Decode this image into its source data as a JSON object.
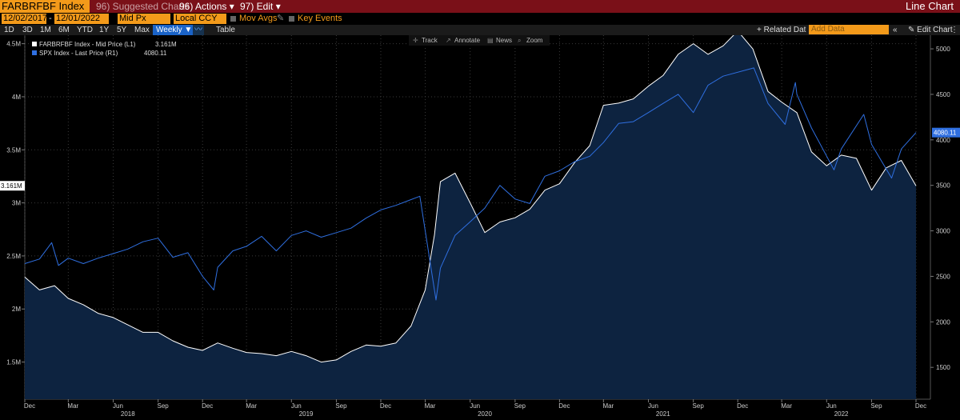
{
  "titlebar": {
    "ticker": "FARBRFBF Index",
    "menu_suggested": "96) Suggested Charts",
    "menu_actions": "96) Actions ▾",
    "menu_edit": "97) Edit ▾",
    "chart_type": "Line Chart"
  },
  "toolbar": {
    "start_date": "12/02/2017",
    "dash": "-",
    "end_date": "12/01/2022",
    "price_field": "Mid Px",
    "currency": "Local CCY",
    "mov_avgs": "Mov Avgs",
    "key_events": "Key Events"
  },
  "ranges": {
    "items": [
      "1D",
      "3D",
      "1M",
      "6M",
      "YTD",
      "1Y",
      "5Y",
      "Max"
    ],
    "periodicity": "Weekly ▼",
    "table": "Table",
    "related_data": "+ Related Dat",
    "add_data_placeholder": "Add Data",
    "edit_chart": "Edit Chart"
  },
  "chart_tools": {
    "track": "Track",
    "annotate": "Annotate",
    "news": "News",
    "zoom": "Zoom"
  },
  "colors": {
    "title_bar": "#7a1018",
    "field_bg": "#f39a1a",
    "spx_line": "#2f6fe0",
    "area_fill": "#0d2340",
    "farb_line": "#ffffff"
  },
  "chart_data": {
    "type": "line",
    "legend": [
      {
        "name": "FARBRFBF Index - Mid Price (L1)",
        "last": "3.161M",
        "color": "#ffffff"
      },
      {
        "name": "SPX Index - Last Price (R1)",
        "last": "4080.11",
        "color": "#2f6fe0"
      }
    ],
    "left_axis": {
      "ticks": [
        "4.5M",
        "4M",
        "3.5M",
        "3M",
        "2.5M",
        "2M",
        "1.5M"
      ],
      "values": [
        4500000,
        4000000,
        3500000,
        3000000,
        2500000,
        2000000,
        1500000
      ],
      "range": [
        1150000,
        4580000
      ],
      "last_label": "3.161M",
      "last_value": 3161000
    },
    "right_axis": {
      "ticks": [
        "5000",
        "4500",
        "4000",
        "3500",
        "3000",
        "2500",
        "2000",
        "1500"
      ],
      "values": [
        5000,
        4500,
        4000,
        3500,
        3000,
        2500,
        2000,
        1500
      ],
      "range": [
        1150,
        5150
      ],
      "last_label": "4080.11",
      "last_value": 4080.11
    },
    "x_axis": {
      "range": [
        "2017-12-02",
        "2022-12-01"
      ],
      "ticks": [
        {
          "date": "2017-12-01",
          "label": "Dec"
        },
        {
          "date": "2018-03-01",
          "label": "Mar"
        },
        {
          "date": "2018-06-01",
          "label": "Jun"
        },
        {
          "date": "2018-09-01",
          "label": "Sep"
        },
        {
          "date": "2018-12-01",
          "label": "Dec"
        },
        {
          "date": "2019-03-01",
          "label": "Mar"
        },
        {
          "date": "2019-06-01",
          "label": "Jun"
        },
        {
          "date": "2019-09-01",
          "label": "Sep"
        },
        {
          "date": "2019-12-01",
          "label": "Dec"
        },
        {
          "date": "2020-03-01",
          "label": "Mar"
        },
        {
          "date": "2020-06-01",
          "label": "Jun"
        },
        {
          "date": "2020-09-01",
          "label": "Sep"
        },
        {
          "date": "2020-12-01",
          "label": "Dec"
        },
        {
          "date": "2021-03-01",
          "label": "Mar"
        },
        {
          "date": "2021-06-01",
          "label": "Jun"
        },
        {
          "date": "2021-09-01",
          "label": "Sep"
        },
        {
          "date": "2021-12-01",
          "label": "Dec"
        },
        {
          "date": "2022-03-01",
          "label": "Mar"
        },
        {
          "date": "2022-06-01",
          "label": "Jun"
        },
        {
          "date": "2022-09-01",
          "label": "Sep"
        },
        {
          "date": "2022-12-01",
          "label": "Dec"
        }
      ],
      "years": [
        {
          "label": "2018",
          "date": "2018-07-01"
        },
        {
          "label": "2019",
          "date": "2019-07-01"
        },
        {
          "label": "2020",
          "date": "2020-07-01"
        },
        {
          "label": "2021",
          "date": "2021-07-01"
        },
        {
          "label": "2022",
          "date": "2022-07-01"
        }
      ]
    },
    "grid": true,
    "series": [
      {
        "name": "FARBRFBF Index - Mid Price (L1)",
        "axis": "left",
        "fill": true,
        "x": [
          "2017-12-02",
          "2018-01-01",
          "2018-02-01",
          "2018-03-01",
          "2018-04-01",
          "2018-05-01",
          "2018-06-01",
          "2018-07-01",
          "2018-08-01",
          "2018-09-01",
          "2018-10-01",
          "2018-11-01",
          "2018-12-01",
          "2019-01-01",
          "2019-02-01",
          "2019-03-01",
          "2019-04-01",
          "2019-05-01",
          "2019-06-01",
          "2019-07-01",
          "2019-08-01",
          "2019-09-01",
          "2019-10-01",
          "2019-11-01",
          "2019-12-01",
          "2020-01-01",
          "2020-02-01",
          "2020-03-01",
          "2020-03-20",
          "2020-04-01",
          "2020-05-01",
          "2020-06-01",
          "2020-07-01",
          "2020-08-01",
          "2020-09-01",
          "2020-10-01",
          "2020-11-01",
          "2020-12-01",
          "2021-01-01",
          "2021-02-01",
          "2021-03-01",
          "2021-04-01",
          "2021-05-01",
          "2021-06-01",
          "2021-07-01",
          "2021-08-01",
          "2021-09-01",
          "2021-10-01",
          "2021-11-01",
          "2021-12-01",
          "2022-01-01",
          "2022-02-01",
          "2022-03-01",
          "2022-04-01",
          "2022-05-01",
          "2022-06-01",
          "2022-07-01",
          "2022-08-01",
          "2022-09-01",
          "2022-10-01",
          "2022-11-01",
          "2022-12-01"
        ],
        "values": [
          2300000,
          2180000,
          2220000,
          2100000,
          2040000,
          1960000,
          1920000,
          1850000,
          1780000,
          1780000,
          1700000,
          1640000,
          1610000,
          1680000,
          1630000,
          1590000,
          1580000,
          1560000,
          1600000,
          1560000,
          1500000,
          1520000,
          1600000,
          1660000,
          1650000,
          1680000,
          1840000,
          2180000,
          2700000,
          3200000,
          3280000,
          3000000,
          2720000,
          2820000,
          2860000,
          2940000,
          3120000,
          3180000,
          3380000,
          3540000,
          3920000,
          3940000,
          3980000,
          4100000,
          4200000,
          4400000,
          4500000,
          4400000,
          4480000,
          4620000,
          4450000,
          4050000,
          3950000,
          3850000,
          3480000,
          3350000,
          3450000,
          3420000,
          3120000,
          3330000,
          3400000,
          3161000
        ]
      },
      {
        "name": "SPX Index - Last Price (R1)",
        "axis": "right",
        "x": [
          "2017-12-02",
          "2018-01-01",
          "2018-01-26",
          "2018-02-09",
          "2018-03-01",
          "2018-04-01",
          "2018-05-01",
          "2018-06-01",
          "2018-07-01",
          "2018-08-01",
          "2018-09-01",
          "2018-10-01",
          "2018-11-01",
          "2018-12-01",
          "2018-12-24",
          "2019-01-01",
          "2019-02-01",
          "2019-03-01",
          "2019-04-01",
          "2019-05-01",
          "2019-06-01",
          "2019-07-01",
          "2019-08-01",
          "2019-09-01",
          "2019-10-01",
          "2019-11-01",
          "2019-12-01",
          "2020-01-01",
          "2020-02-19",
          "2020-03-23",
          "2020-04-01",
          "2020-05-01",
          "2020-06-01",
          "2020-07-01",
          "2020-08-01",
          "2020-09-01",
          "2020-10-01",
          "2020-11-01",
          "2020-12-01",
          "2021-01-01",
          "2021-02-01",
          "2021-03-01",
          "2021-04-01",
          "2021-05-01",
          "2021-06-01",
          "2021-07-01",
          "2021-08-01",
          "2021-09-01",
          "2021-10-01",
          "2021-11-01",
          "2022-01-03",
          "2022-02-01",
          "2022-03-08",
          "2022-03-29",
          "2022-04-01",
          "2022-05-01",
          "2022-06-16",
          "2022-07-01",
          "2022-08-16",
          "2022-09-01",
          "2022-10-12",
          "2022-11-01",
          "2022-12-01"
        ],
        "values": [
          2640,
          2690,
          2870,
          2620,
          2700,
          2640,
          2700,
          2750,
          2800,
          2880,
          2920,
          2710,
          2760,
          2500,
          2350,
          2600,
          2780,
          2830,
          2940,
          2780,
          2950,
          3000,
          2930,
          2980,
          3030,
          3140,
          3230,
          3280,
          3380,
          2240,
          2590,
          2950,
          3100,
          3250,
          3500,
          3350,
          3300,
          3600,
          3660,
          3760,
          3820,
          3970,
          4180,
          4200,
          4300,
          4400,
          4500,
          4300,
          4600,
          4700,
          4790,
          4400,
          4170,
          4630,
          4500,
          4130,
          3670,
          3900,
          4280,
          3950,
          3580,
          3900,
          4080.11
        ]
      }
    ]
  }
}
